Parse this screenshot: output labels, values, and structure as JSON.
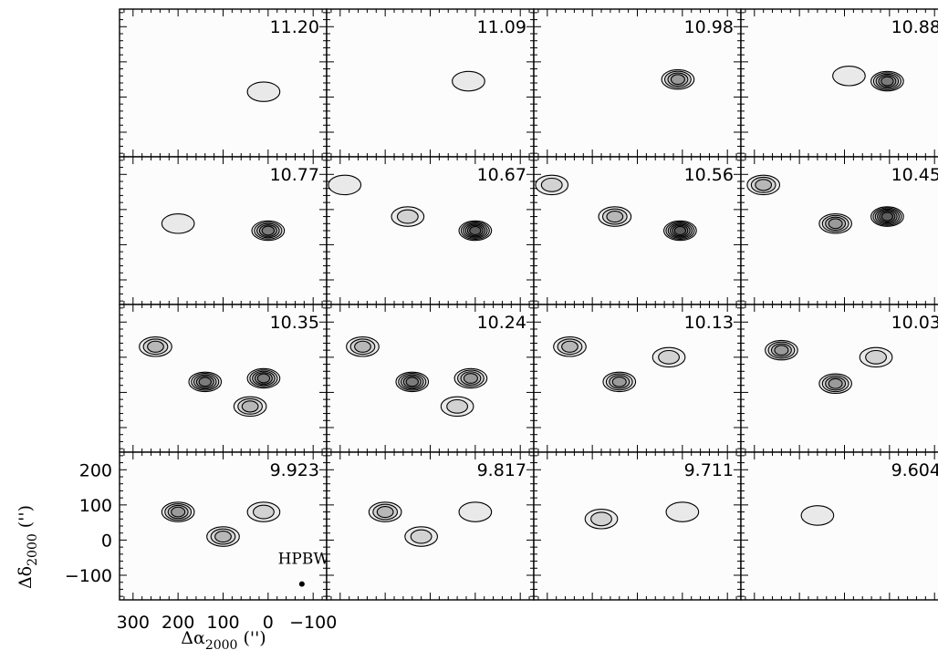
{
  "chart_data": {
    "type": "contour",
    "grid": {
      "rows": 4,
      "cols": 4
    },
    "x_axis": {
      "label_main": "Δα",
      "label_sub": "2000",
      "label_unit": "('')",
      "lim": [
        330,
        -130
      ],
      "ticks": [
        300,
        200,
        100,
        0,
        -100
      ],
      "tick_labels": [
        "300",
        "200",
        "100",
        "0",
        "−100"
      ]
    },
    "y_axis": {
      "label_main": "Δδ",
      "label_sub": "2000",
      "label_unit": "('')",
      "lim": [
        -170,
        250
      ],
      "ticks": [
        -100,
        0,
        100,
        200
      ],
      "tick_labels": [
        "−100",
        "0",
        "100",
        "200"
      ]
    },
    "beam": {
      "label": "HPBW",
      "x": -75,
      "y": -125
    },
    "panels": [
      {
        "velocity": "11.20",
        "blobs": [
          {
            "x": 10,
            "y": 15,
            "peak": 1
          }
        ]
      },
      {
        "velocity": "11.09",
        "blobs": [
          {
            "x": 15,
            "y": 45,
            "peak": 1
          }
        ]
      },
      {
        "velocity": "10.98",
        "blobs": [
          {
            "x": 10,
            "y": 50,
            "peak": 4
          }
        ]
      },
      {
        "velocity": "10.88",
        "blobs": [
          {
            "x": 5,
            "y": 45,
            "peak": 5
          },
          {
            "x": 90,
            "y": 60,
            "peak": 1
          }
        ]
      },
      {
        "velocity": "10.77",
        "blobs": [
          {
            "x": 0,
            "y": 40,
            "peak": 5
          },
          {
            "x": 200,
            "y": 60,
            "peak": 1
          }
        ]
      },
      {
        "velocity": "10.67",
        "blobs": [
          {
            "x": 0,
            "y": 40,
            "peak": 6
          },
          {
            "x": 150,
            "y": 80,
            "peak": 2
          },
          {
            "x": 290,
            "y": 170,
            "peak": 1
          }
        ]
      },
      {
        "velocity": "10.56",
        "blobs": [
          {
            "x": 5,
            "y": 40,
            "peak": 6
          },
          {
            "x": 150,
            "y": 80,
            "peak": 3
          },
          {
            "x": 290,
            "y": 170,
            "peak": 2
          }
        ]
      },
      {
        "velocity": "10.45",
        "blobs": [
          {
            "x": 5,
            "y": 80,
            "peak": 6
          },
          {
            "x": 120,
            "y": 60,
            "peak": 4
          },
          {
            "x": 280,
            "y": 170,
            "peak": 3
          }
        ]
      },
      {
        "velocity": "10.35",
        "blobs": [
          {
            "x": 10,
            "y": 40,
            "peak": 5
          },
          {
            "x": 140,
            "y": 30,
            "peak": 5
          },
          {
            "x": 250,
            "y": 130,
            "peak": 3
          },
          {
            "x": 40,
            "y": -40,
            "peak": 3
          }
        ]
      },
      {
        "velocity": "10.24",
        "blobs": [
          {
            "x": 10,
            "y": 40,
            "peak": 4
          },
          {
            "x": 140,
            "y": 30,
            "peak": 5
          },
          {
            "x": 250,
            "y": 130,
            "peak": 3
          },
          {
            "x": 40,
            "y": -40,
            "peak": 2
          }
        ]
      },
      {
        "velocity": "10.13",
        "blobs": [
          {
            "x": 140,
            "y": 30,
            "peak": 4
          },
          {
            "x": 250,
            "y": 130,
            "peak": 3
          },
          {
            "x": 30,
            "y": 100,
            "peak": 2
          }
        ]
      },
      {
        "velocity": "10.03",
        "blobs": [
          {
            "x": 120,
            "y": 25,
            "peak": 4
          },
          {
            "x": 240,
            "y": 120,
            "peak": 4
          },
          {
            "x": 30,
            "y": 100,
            "peak": 2
          }
        ]
      },
      {
        "velocity": "9.923",
        "blobs": [
          {
            "x": 200,
            "y": 80,
            "peak": 4
          },
          {
            "x": 100,
            "y": 10,
            "peak": 3
          },
          {
            "x": 10,
            "y": 80,
            "peak": 2
          }
        ]
      },
      {
        "velocity": "9.817",
        "blobs": [
          {
            "x": 200,
            "y": 80,
            "peak": 3
          },
          {
            "x": 120,
            "y": 10,
            "peak": 2
          },
          {
            "x": 0,
            "y": 80,
            "peak": 1
          }
        ]
      },
      {
        "velocity": "9.711",
        "blobs": [
          {
            "x": 180,
            "y": 60,
            "peak": 2
          },
          {
            "x": 0,
            "y": 80,
            "peak": 1
          }
        ]
      },
      {
        "velocity": "9.604",
        "blobs": [
          {
            "x": 160,
            "y": 70,
            "peak": 1
          }
        ]
      }
    ]
  }
}
